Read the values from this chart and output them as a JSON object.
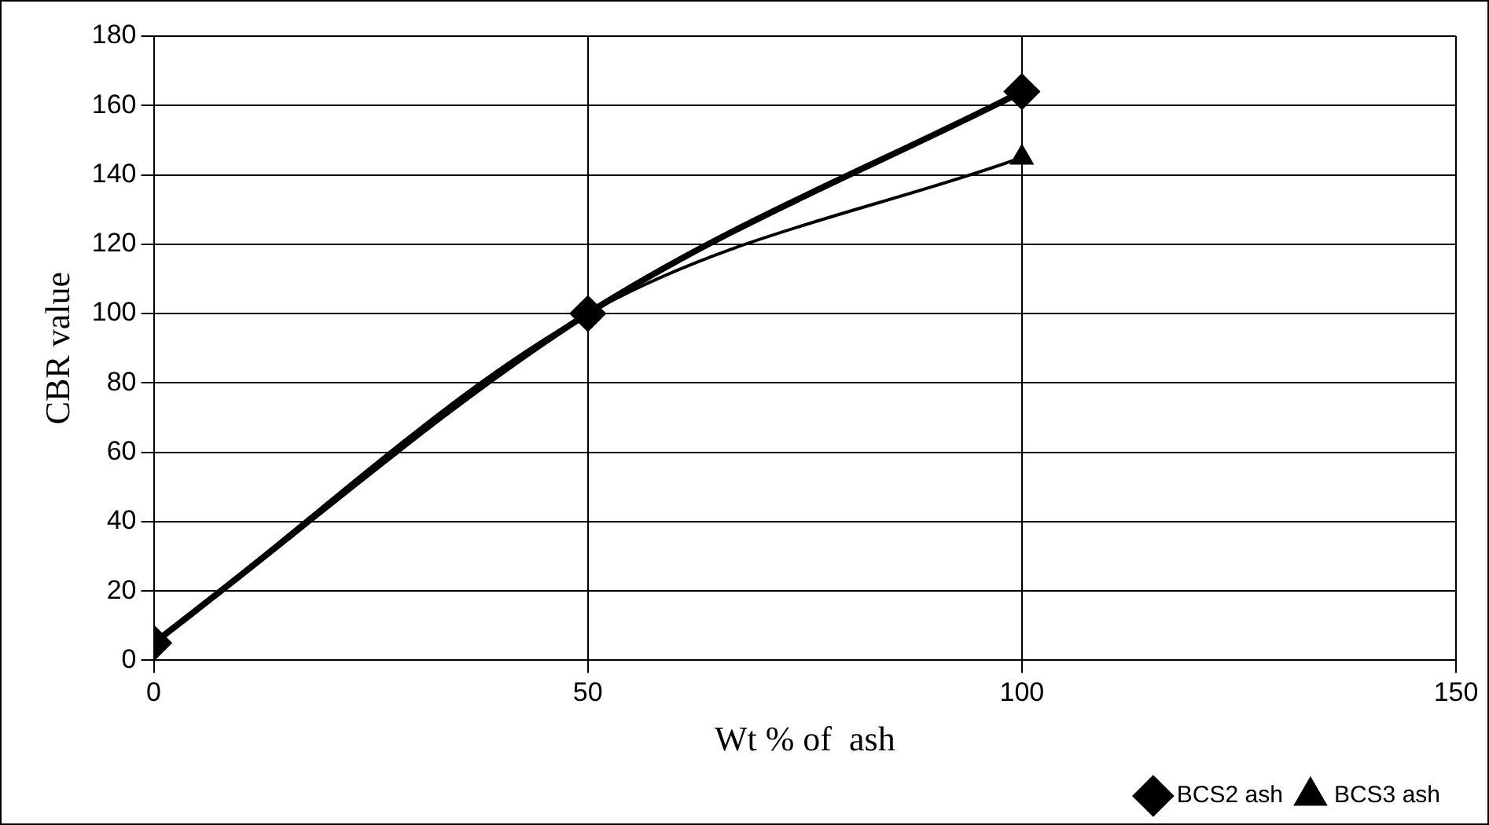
{
  "chart_data": {
    "type": "line",
    "xlabel": "Wt % of  ash",
    "ylabel": "CBR value",
    "x": [
      0,
      50,
      100
    ],
    "series": [
      {
        "name": "BCS2 ash",
        "color": "#000000",
        "values": [
          5,
          100,
          164
        ],
        "marker": "diamond"
      },
      {
        "name": "BCS3 ash",
        "color": "#000000",
        "values": [
          5,
          100,
          145
        ],
        "marker": "triangle"
      }
    ],
    "xlim": [
      0,
      150
    ],
    "xticks": [
      0,
      50,
      100,
      150
    ],
    "ylim": [
      0,
      180
    ],
    "yticks": [
      0,
      20,
      40,
      60,
      80,
      100,
      120,
      140,
      160,
      180
    ],
    "grid": true,
    "legend": "bottom right",
    "line_style": "solid"
  }
}
